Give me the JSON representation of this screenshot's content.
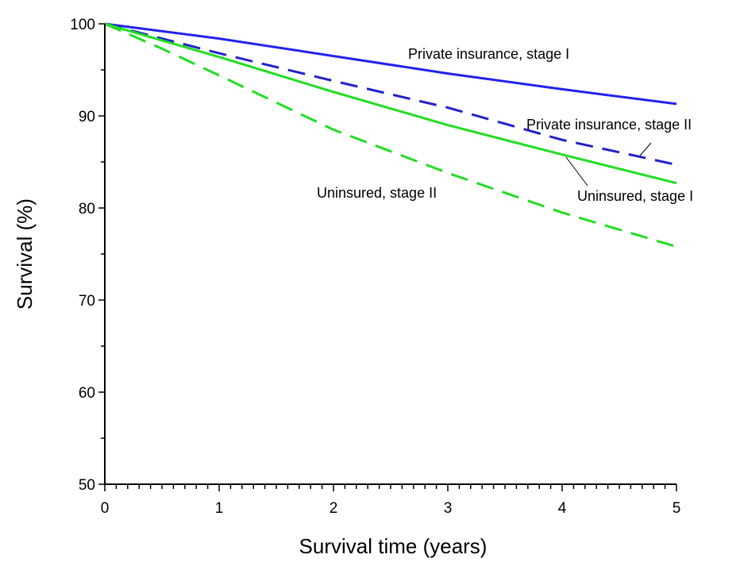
{
  "chart_data": {
    "type": "line",
    "title": "",
    "xlabel": "Survival time (years)",
    "ylabel": "Survival (%)",
    "xlim": [
      0,
      5
    ],
    "ylim": [
      50,
      100
    ],
    "x_ticks": [
      0,
      1,
      2,
      3,
      4,
      5
    ],
    "y_ticks": [
      50,
      60,
      70,
      80,
      90,
      100
    ],
    "grid": false,
    "legend": "none (inline annotations)",
    "series": [
      {
        "name": "Private insurance, stage I",
        "color": "#2222ee",
        "dash": "solid",
        "x": [
          0,
          1,
          2,
          3,
          4,
          5
        ],
        "y": [
          100,
          98.4,
          96.5,
          94.6,
          92.9,
          91.3
        ]
      },
      {
        "name": "Private insurance, stage II",
        "color": "#2222cc",
        "dash": "dashed",
        "x": [
          0,
          1,
          2,
          3,
          4,
          5
        ],
        "y": [
          100,
          96.8,
          93.8,
          90.9,
          87.4,
          84.7
        ]
      },
      {
        "name": "Uninsured, stage I",
        "color": "#22dd22",
        "dash": "solid",
        "x": [
          0,
          1,
          2,
          3,
          4,
          5
        ],
        "y": [
          100,
          96.4,
          92.6,
          89.0,
          85.8,
          82.7
        ]
      },
      {
        "name": "Uninsured, stage II",
        "color": "#22dd22",
        "dash": "dashed",
        "x": [
          0,
          0.5,
          1,
          2,
          3,
          4,
          5
        ],
        "y": [
          100,
          97.3,
          94.4,
          88.5,
          83.8,
          79.5,
          75.8
        ]
      }
    ],
    "annotations": [
      {
        "text": "Private insurance, stage I",
        "series": 0
      },
      {
        "text": "Private insurance, stage II",
        "series": 1
      },
      {
        "text": "Uninsured, stage I",
        "series": 2
      },
      {
        "text": "Uninsured, stage II",
        "series": 3
      }
    ]
  }
}
